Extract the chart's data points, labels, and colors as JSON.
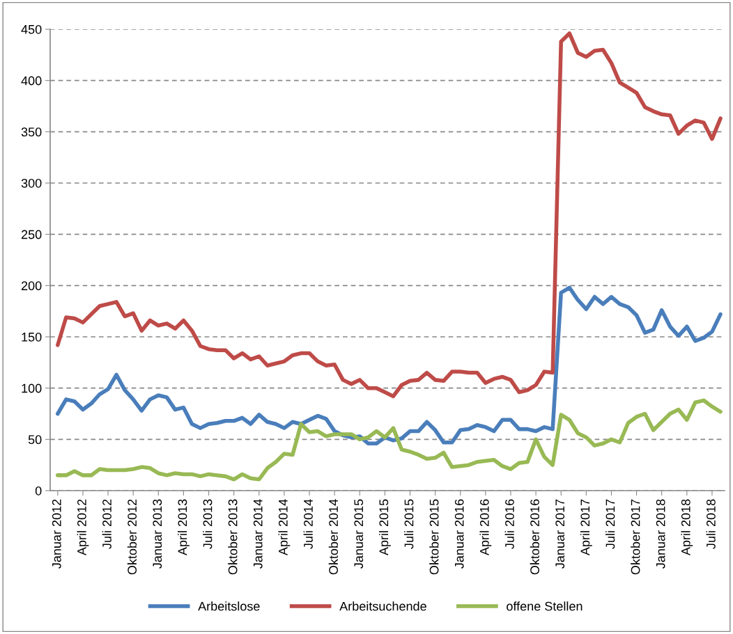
{
  "chart_data": {
    "type": "line",
    "categories": [
      "Januar 2012",
      null,
      null,
      "April 2012",
      null,
      null,
      "Juli 2012",
      null,
      null,
      "Oktober 2012",
      null,
      null,
      "Januar 2013",
      null,
      null,
      "April 2013",
      null,
      null,
      "Juli 2013",
      null,
      null,
      "Oktober 2013",
      null,
      null,
      "Januar 2014",
      null,
      null,
      "April 2014",
      null,
      null,
      "Juli 2014",
      null,
      null,
      "Oktober 2014",
      null,
      null,
      "Januar 2015",
      null,
      null,
      "April 2015",
      null,
      null,
      "Juli 2015",
      null,
      null,
      "Oktober 2015",
      null,
      null,
      "Januar 2016",
      null,
      null,
      "April 2016",
      null,
      null,
      "Juli 2016",
      null,
      null,
      "Oktober 2016",
      null,
      null,
      "Januar 2017",
      null,
      null,
      "April 2017",
      null,
      null,
      "Juli 2017",
      null,
      null,
      "Oktober 2017",
      null,
      null,
      "Januar 2018",
      null,
      null,
      "April 2018",
      null,
      null,
      "Juli 2018",
      null
    ],
    "series": [
      {
        "name": "Arbeitslose",
        "color": "#4a7ebb",
        "values": [
          75,
          89,
          87,
          79,
          85,
          94,
          99,
          113,
          98,
          89,
          78,
          89,
          93,
          91,
          79,
          81,
          65,
          61,
          65,
          66,
          68,
          68,
          71,
          65,
          74,
          67,
          65,
          61,
          67,
          65,
          69,
          73,
          70,
          58,
          54,
          52,
          53,
          46,
          46,
          52,
          49,
          51,
          58,
          58,
          67,
          59,
          47,
          47,
          59,
          60,
          64,
          62,
          58,
          69,
          69,
          60,
          60,
          58,
          62,
          60,
          193,
          198,
          186,
          177,
          189,
          182,
          189,
          182,
          179,
          171,
          154,
          157,
          176,
          160,
          151,
          160,
          146,
          149,
          155,
          172
        ]
      },
      {
        "name": "Arbeitsuchende",
        "color": "#be4b48",
        "values": [
          142,
          169,
          168,
          164,
          172,
          180,
          182,
          184,
          170,
          173,
          156,
          166,
          161,
          163,
          158,
          166,
          156,
          141,
          138,
          137,
          137,
          129,
          134,
          128,
          131,
          122,
          124,
          126,
          132,
          134,
          134,
          126,
          122,
          123,
          108,
          104,
          108,
          100,
          100,
          96,
          92,
          103,
          107,
          108,
          115,
          108,
          107,
          116,
          116,
          115,
          115,
          105,
          109,
          111,
          108,
          96,
          98,
          103,
          116,
          115,
          438,
          446,
          427,
          423,
          429,
          430,
          417,
          398,
          393,
          388,
          374,
          370,
          367,
          366,
          348,
          356,
          361,
          359,
          343,
          363
        ]
      },
      {
        "name": "offene Stellen",
        "color": "#98b954",
        "values": [
          15,
          15,
          19,
          15,
          15,
          21,
          20,
          20,
          20,
          21,
          23,
          22,
          17,
          15,
          17,
          16,
          16,
          14,
          16,
          15,
          14,
          11,
          16,
          12,
          11,
          22,
          28,
          36,
          35,
          65,
          57,
          58,
          53,
          55,
          55,
          55,
          50,
          52,
          58,
          52,
          61,
          40,
          38,
          35,
          31,
          32,
          37,
          23,
          24,
          25,
          28,
          29,
          30,
          24,
          21,
          27,
          28,
          50,
          33,
          25,
          74,
          69,
          56,
          52,
          44,
          46,
          50,
          47,
          66,
          72,
          75,
          59,
          67,
          75,
          79,
          69,
          86,
          88,
          82,
          77
        ]
      }
    ],
    "ylim": [
      0,
      450
    ],
    "yticks": [
      0,
      50,
      100,
      150,
      200,
      250,
      300,
      350,
      400,
      450
    ],
    "grid": "y",
    "legend": "bottom",
    "marker": "none",
    "line_style": "solid"
  }
}
